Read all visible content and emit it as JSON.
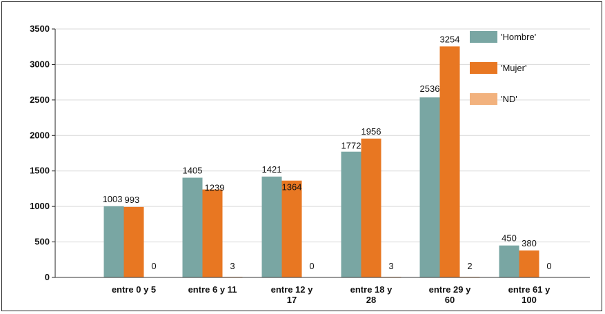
{
  "chart_data": {
    "type": "bar",
    "categories": [
      [
        "entre 0 y 5"
      ],
      [
        "entre 6 y 11"
      ],
      [
        "entre 12 y",
        "17"
      ],
      [
        "entre 18 y",
        "28"
      ],
      [
        "entre 29 y",
        "60"
      ],
      [
        "entre 61 y",
        "100"
      ]
    ],
    "series": [
      {
        "name": "'Hombre'",
        "color": "#79a6a3",
        "values": [
          1003,
          1405,
          1421,
          1772,
          2536,
          450
        ]
      },
      {
        "name": "'Mujer'",
        "color": "#e87722",
        "values": [
          993,
          1239,
          1364,
          1956,
          3254,
          380
        ]
      },
      {
        "name": "'ND'",
        "color": "#f2b27e",
        "values": [
          0,
          3,
          0,
          3,
          2,
          0
        ]
      }
    ],
    "ylim": [
      0,
      3500
    ],
    "yticks": [
      0,
      500,
      1000,
      1500,
      2000,
      2500,
      3000,
      3500
    ],
    "grid": true,
    "legend": "top-right"
  }
}
